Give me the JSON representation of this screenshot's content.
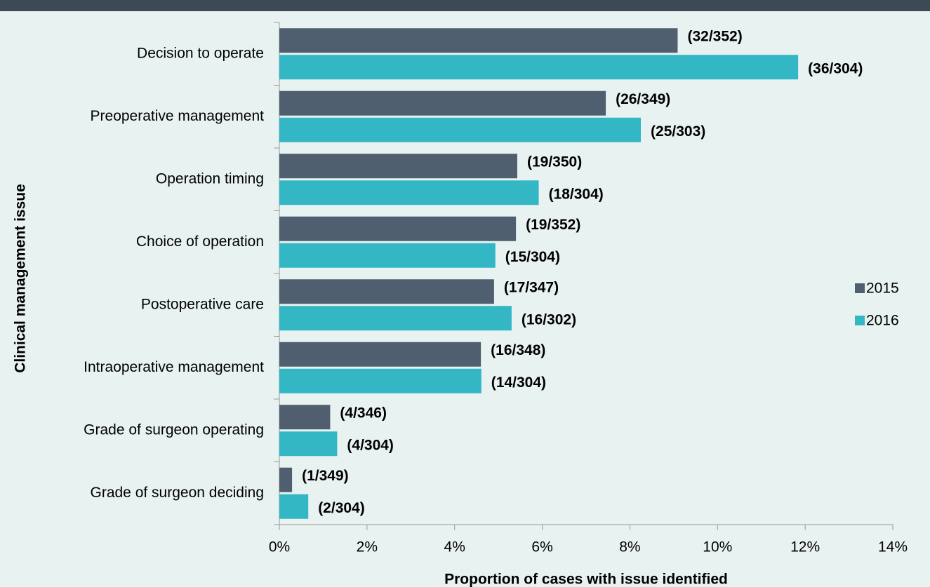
{
  "chart_data": {
    "type": "hbar",
    "categories": [
      "Decision to operate",
      "Preoperative management",
      "Operation timing",
      "Choice of operation",
      "Postoperative care",
      "Intraoperative management",
      "Grade of surgeon operating",
      "Grade of surgeon deciding"
    ],
    "series": [
      {
        "name": "2015",
        "color": "#4f5f70",
        "values": [
          9.09,
          7.45,
          5.43,
          5.4,
          4.9,
          4.6,
          1.16,
          0.29
        ],
        "value_labels": [
          "(32/352)",
          "(26/349)",
          "(19/350)",
          "(19/352)",
          "(17/347)",
          "(16/348)",
          "(4/346)",
          "(1/349)"
        ]
      },
      {
        "name": "2016",
        "color": "#33b7c4",
        "values": [
          11.84,
          8.25,
          5.92,
          4.93,
          5.3,
          4.61,
          1.32,
          0.66
        ],
        "value_labels": [
          "(36/304)",
          "(25/303)",
          "(18/304)",
          "(15/304)",
          "(16/302)",
          "(14/304)",
          "(4/304)",
          "(2/304)"
        ]
      }
    ],
    "xlim": [
      0,
      14
    ],
    "xticks": [
      {
        "value": 0,
        "label": "0%"
      },
      {
        "value": 2,
        "label": "2%"
      },
      {
        "value": 4,
        "label": "4%"
      },
      {
        "value": 6,
        "label": "6%"
      },
      {
        "value": 8,
        "label": "8%"
      },
      {
        "value": 10,
        "label": "10%"
      },
      {
        "value": 12,
        "label": "12%"
      },
      {
        "value": 14,
        "label": "14%"
      }
    ],
    "xlabel": "Proportion of cases with issue identified",
    "ylabel": "Clinical management issue",
    "legend": "right"
  }
}
